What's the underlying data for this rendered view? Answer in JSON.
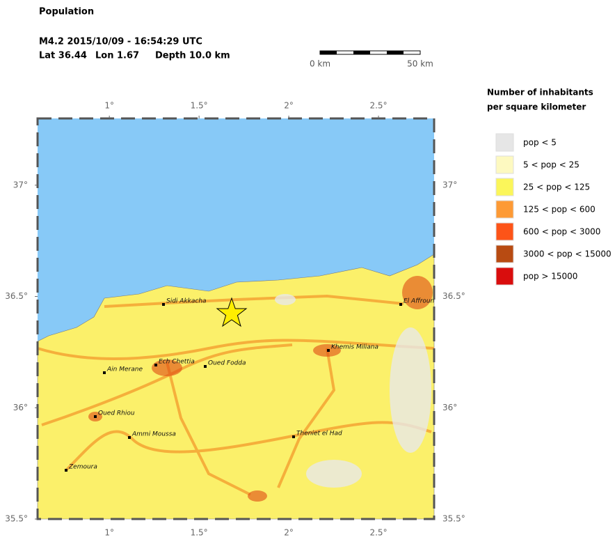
{
  "header": {
    "title": "Population",
    "event": "M4.2  2015/10/09 - 16:54:29 UTC",
    "lat": "Lat 36.44",
    "lon": "Lon  1.67",
    "depth": "Depth  10.0 km"
  },
  "scale_bar": {
    "start": "0 km",
    "end": "50 km"
  },
  "map": {
    "xlim": [
      0.6,
      2.81
    ],
    "ylim": [
      35.5,
      37.3
    ],
    "xticks": [
      {
        "value": 1,
        "label": "1°"
      },
      {
        "value": 1.5,
        "label": "1.5°"
      },
      {
        "value": 2,
        "label": "2°"
      },
      {
        "value": 2.5,
        "label": "2.5°"
      }
    ],
    "yticks": [
      {
        "value": 37,
        "label": "37°"
      },
      {
        "value": 36.5,
        "label": "36.5°"
      },
      {
        "value": 36,
        "label": "36°"
      },
      {
        "value": 35.5,
        "label": "35.5°"
      }
    ],
    "cities": [
      "Sidi Akkacha",
      "El Affroun",
      "Khemis Miliana",
      "Ech Chettia",
      "Oued Fodda",
      "Ain Merane",
      "Oued Rhiou",
      "Ammi Moussa",
      "Theniet el Had",
      "Zemoura"
    ]
  },
  "legend": {
    "title": [
      "Number of inhabitants",
      "per square kilometer"
    ],
    "items": [
      {
        "label": "pop < 5",
        "color": "#e6e6e6"
      },
      {
        "label": "5 < pop < 25",
        "color": "#fdf9c0"
      },
      {
        "label": "25 < pop < 125",
        "color": "#fbf65a"
      },
      {
        "label": "125 < pop < 600",
        "color": "#fd9a35"
      },
      {
        "label": "600 < pop < 3000",
        "color": "#fd5418"
      },
      {
        "label": "3000 < pop < 15000",
        "color": "#b84b12"
      },
      {
        "label": "pop > 15000",
        "color": "#d90d0d"
      }
    ]
  }
}
